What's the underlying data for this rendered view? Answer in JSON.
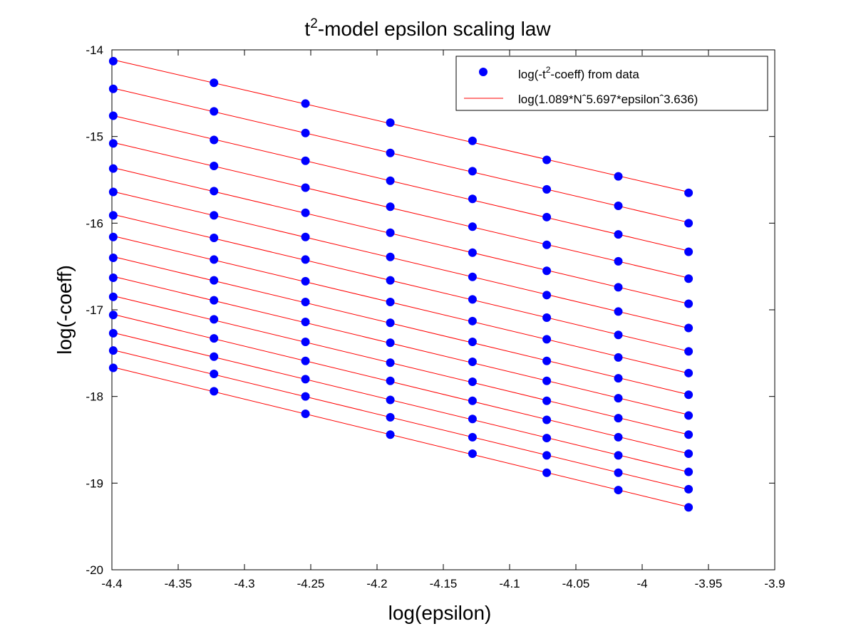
{
  "chart_data": {
    "type": "scatter",
    "title_base": "t",
    "title_sup": "2",
    "title_rest": "-model epsilon scaling law",
    "xlabel": "log(epsilon)",
    "ylabel": "log(-coeff)",
    "xlim": [
      -4.4,
      -3.9
    ],
    "ylim": [
      -20,
      -14
    ],
    "x_ticks": [
      -4.4,
      -4.35,
      -4.3,
      -4.25,
      -4.2,
      -4.15,
      -4.1,
      -4.05,
      -4.0,
      -3.95,
      -3.9
    ],
    "x_tick_labels": [
      "-4.4",
      "-4.35",
      "-4.3",
      "-4.25",
      "-4.2",
      "-4.15",
      "-4.1",
      "-4.05",
      "-4",
      "-3.95",
      "-3.9"
    ],
    "y_ticks": [
      -20,
      -19,
      -18,
      -17,
      -16,
      -15,
      -14
    ],
    "y_tick_labels": [
      "-20",
      "-19",
      "-18",
      "-17",
      "-16",
      "-15",
      "-14"
    ],
    "grid": false,
    "legend_position": "top-right",
    "legend": {
      "data_prefix": "log(-t",
      "data_sup": "2",
      "data_suffix": "-coeff) from data",
      "fit_label": "log(1.089*Nˆ5.697*epsilonˆ3.636)"
    },
    "colors": {
      "data": "#0000ff",
      "fit": "#ff0000"
    },
    "series": [
      {
        "points": [
          [
            -4.399,
            -14.13
          ],
          [
            -4.323,
            -14.38
          ],
          [
            -4.254,
            -14.62
          ],
          [
            -4.19,
            -14.84
          ],
          [
            -4.128,
            -15.05
          ],
          [
            -4.072,
            -15.27
          ],
          [
            -4.018,
            -15.46
          ],
          [
            -3.965,
            -15.65
          ]
        ]
      },
      {
        "points": [
          [
            -4.399,
            -14.45
          ],
          [
            -4.323,
            -14.71
          ],
          [
            -4.254,
            -14.96
          ],
          [
            -4.19,
            -15.19
          ],
          [
            -4.128,
            -15.4
          ],
          [
            -4.072,
            -15.61
          ],
          [
            -4.018,
            -15.8
          ],
          [
            -3.965,
            -16.0
          ]
        ]
      },
      {
        "points": [
          [
            -4.399,
            -14.76
          ],
          [
            -4.323,
            -15.04
          ],
          [
            -4.254,
            -15.28
          ],
          [
            -4.19,
            -15.51
          ],
          [
            -4.128,
            -15.72
          ],
          [
            -4.072,
            -15.93
          ],
          [
            -4.018,
            -16.13
          ],
          [
            -3.965,
            -16.33
          ]
        ]
      },
      {
        "points": [
          [
            -4.399,
            -15.08
          ],
          [
            -4.323,
            -15.34
          ],
          [
            -4.254,
            -15.59
          ],
          [
            -4.19,
            -15.81
          ],
          [
            -4.128,
            -16.04
          ],
          [
            -4.072,
            -16.25
          ],
          [
            -4.018,
            -16.44
          ],
          [
            -3.965,
            -16.64
          ]
        ]
      },
      {
        "points": [
          [
            -4.399,
            -15.37
          ],
          [
            -4.323,
            -15.63
          ],
          [
            -4.254,
            -15.88
          ],
          [
            -4.19,
            -16.11
          ],
          [
            -4.128,
            -16.34
          ],
          [
            -4.072,
            -16.55
          ],
          [
            -4.018,
            -16.74
          ],
          [
            -3.965,
            -16.93
          ]
        ]
      },
      {
        "points": [
          [
            -4.399,
            -15.64
          ],
          [
            -4.323,
            -15.91
          ],
          [
            -4.254,
            -16.16
          ],
          [
            -4.19,
            -16.39
          ],
          [
            -4.128,
            -16.62
          ],
          [
            -4.072,
            -16.83
          ],
          [
            -4.018,
            -17.02
          ],
          [
            -3.965,
            -17.21
          ]
        ]
      },
      {
        "points": [
          [
            -4.399,
            -15.91
          ],
          [
            -4.323,
            -16.17
          ],
          [
            -4.254,
            -16.42
          ],
          [
            -4.19,
            -16.66
          ],
          [
            -4.128,
            -16.88
          ],
          [
            -4.072,
            -17.09
          ],
          [
            -4.018,
            -17.29
          ],
          [
            -3.965,
            -17.48
          ]
        ]
      },
      {
        "points": [
          [
            -4.399,
            -16.16
          ],
          [
            -4.323,
            -16.42
          ],
          [
            -4.254,
            -16.67
          ],
          [
            -4.19,
            -16.91
          ],
          [
            -4.128,
            -17.13
          ],
          [
            -4.072,
            -17.34
          ],
          [
            -4.018,
            -17.55
          ],
          [
            -3.965,
            -17.73
          ]
        ]
      },
      {
        "points": [
          [
            -4.399,
            -16.4
          ],
          [
            -4.323,
            -16.66
          ],
          [
            -4.254,
            -16.91
          ],
          [
            -4.19,
            -17.15
          ],
          [
            -4.128,
            -17.37
          ],
          [
            -4.072,
            -17.59
          ],
          [
            -4.018,
            -17.79
          ],
          [
            -3.965,
            -17.98
          ]
        ]
      },
      {
        "points": [
          [
            -4.399,
            -16.63
          ],
          [
            -4.323,
            -16.89
          ],
          [
            -4.254,
            -17.14
          ],
          [
            -4.19,
            -17.38
          ],
          [
            -4.128,
            -17.6
          ],
          [
            -4.072,
            -17.82
          ],
          [
            -4.018,
            -18.02
          ],
          [
            -3.965,
            -18.22
          ]
        ]
      },
      {
        "points": [
          [
            -4.399,
            -16.85
          ],
          [
            -4.323,
            -17.11
          ],
          [
            -4.254,
            -17.37
          ],
          [
            -4.19,
            -17.61
          ],
          [
            -4.128,
            -17.83
          ],
          [
            -4.072,
            -18.05
          ],
          [
            -4.018,
            -18.25
          ],
          [
            -3.965,
            -18.44
          ]
        ]
      },
      {
        "points": [
          [
            -4.399,
            -17.06
          ],
          [
            -4.323,
            -17.33
          ],
          [
            -4.254,
            -17.59
          ],
          [
            -4.19,
            -17.82
          ],
          [
            -4.128,
            -18.05
          ],
          [
            -4.072,
            -18.27
          ],
          [
            -4.018,
            -18.47
          ],
          [
            -3.965,
            -18.66
          ]
        ]
      },
      {
        "points": [
          [
            -4.399,
            -17.27
          ],
          [
            -4.323,
            -17.54
          ],
          [
            -4.254,
            -17.8
          ],
          [
            -4.19,
            -18.04
          ],
          [
            -4.128,
            -18.26
          ],
          [
            -4.072,
            -18.48
          ],
          [
            -4.018,
            -18.68
          ],
          [
            -3.965,
            -18.87
          ]
        ]
      },
      {
        "points": [
          [
            -4.399,
            -17.47
          ],
          [
            -4.323,
            -17.74
          ],
          [
            -4.254,
            -18.0
          ],
          [
            -4.19,
            -18.24
          ],
          [
            -4.128,
            -18.47
          ],
          [
            -4.072,
            -18.68
          ],
          [
            -4.018,
            -18.88
          ],
          [
            -3.965,
            -19.07
          ]
        ]
      },
      {
        "points": [
          [
            -4.399,
            -17.67
          ],
          [
            -4.323,
            -17.94
          ],
          [
            -4.254,
            -18.2
          ],
          [
            -4.19,
            -18.44
          ],
          [
            -4.128,
            -18.66
          ],
          [
            -4.072,
            -18.88
          ],
          [
            -4.018,
            -19.08
          ],
          [
            -3.965,
            -19.28
          ]
        ]
      }
    ]
  }
}
